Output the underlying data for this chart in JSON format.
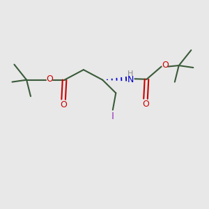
{
  "background_color": "#e8e8e8",
  "bond_color": "#3a5a3a",
  "oxygen_color": "#cc0000",
  "nitrogen_color": "#0000cc",
  "iodine_color": "#9933bb",
  "hydrogen_color": "#888888",
  "bond_lw": 1.5,
  "font_size": 9,
  "figsize": [
    3.0,
    3.0
  ],
  "dpi": 100,
  "xlim": [
    0,
    10
  ],
  "ylim": [
    0,
    10
  ]
}
